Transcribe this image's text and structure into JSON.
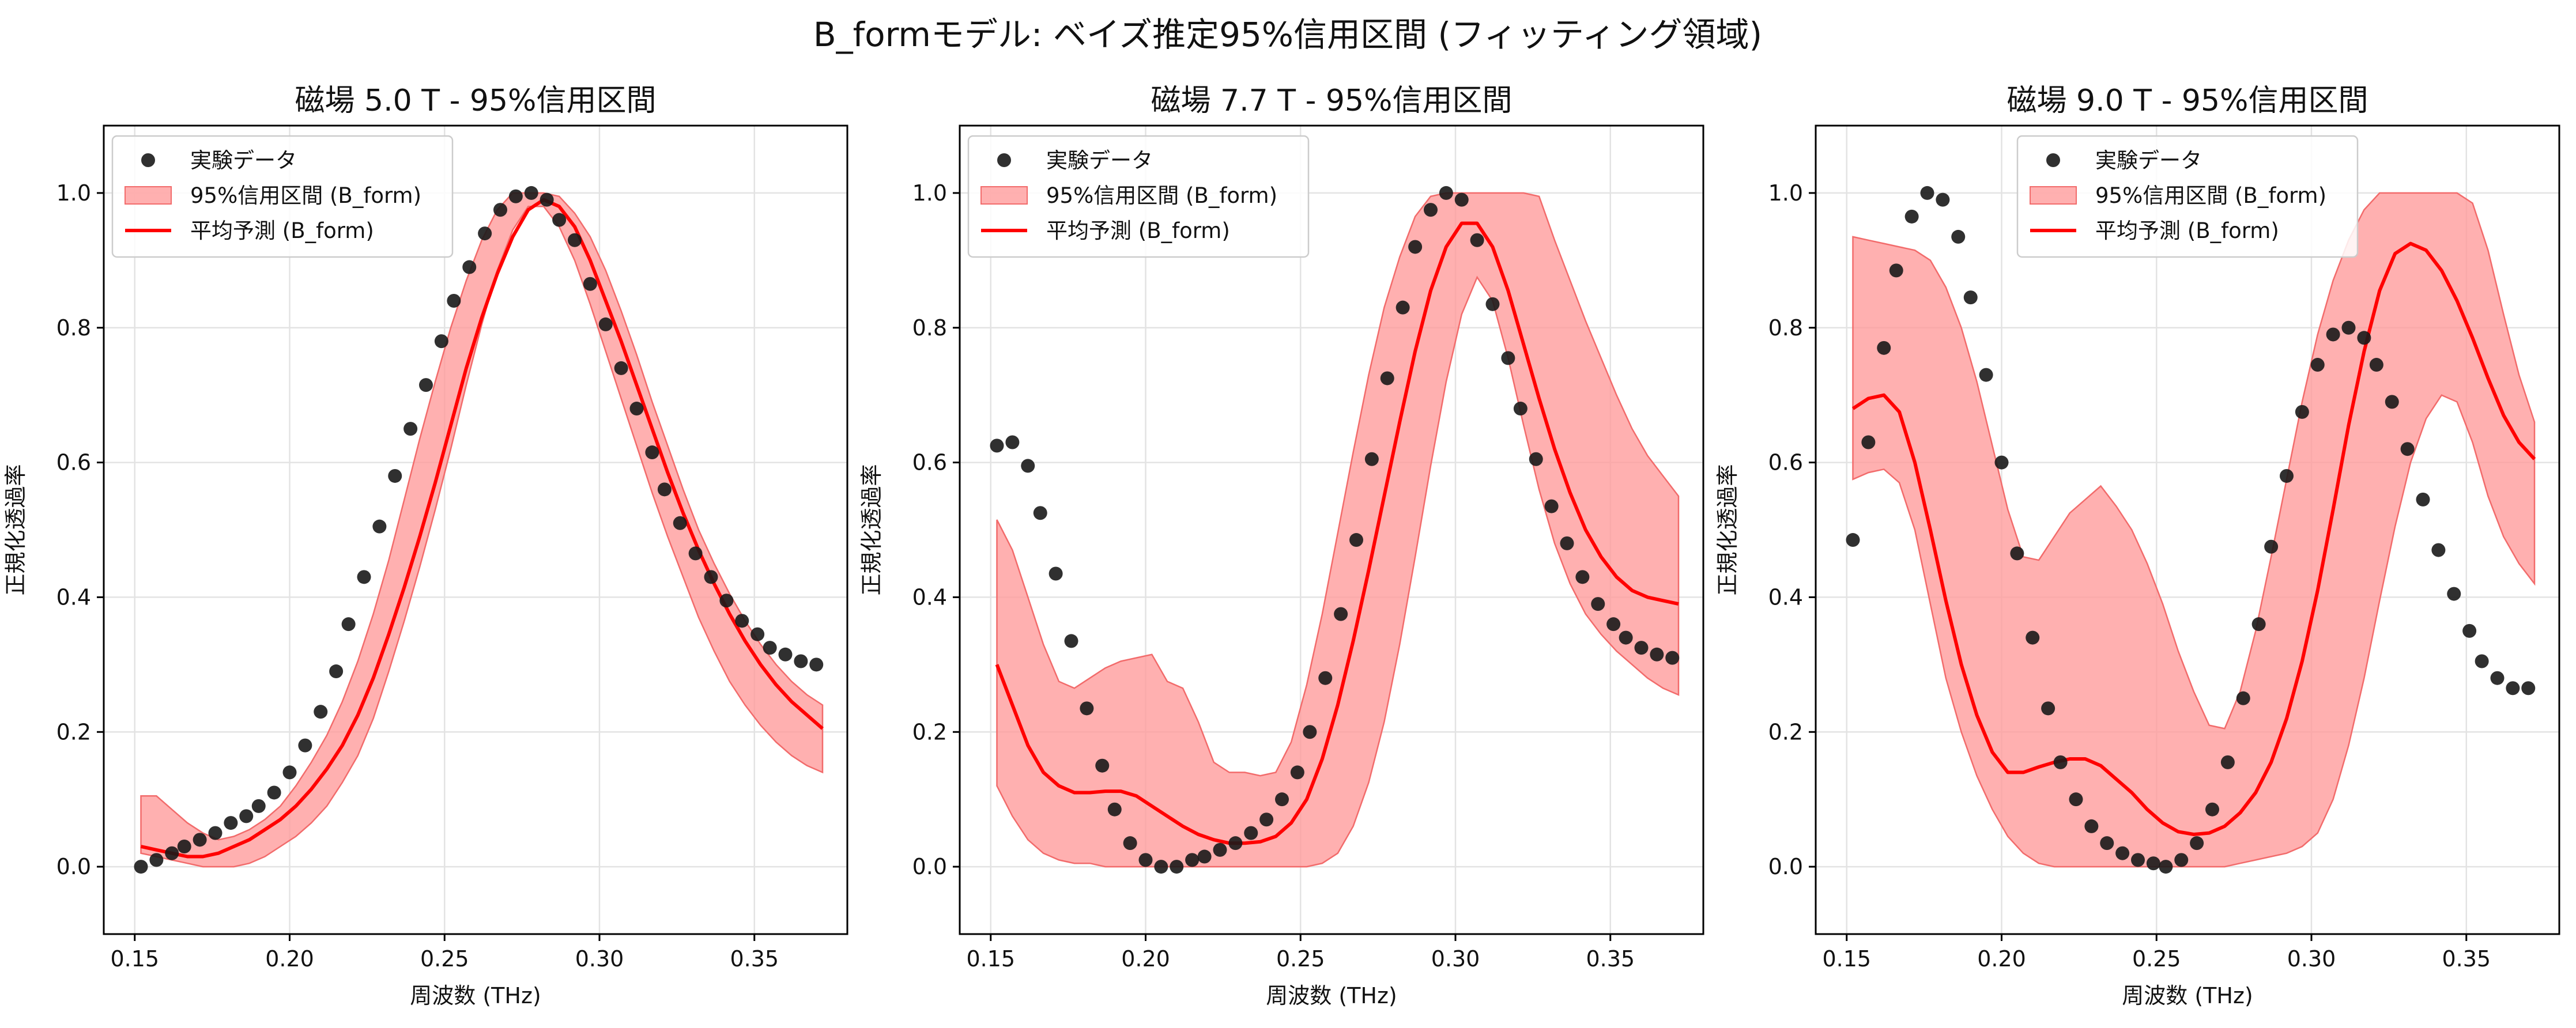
{
  "suptitle": "B_formモデル: ベイズ推定95%信用区間 (フィッティング領域)",
  "colors": {
    "data_point": "#1a1a1a",
    "band_fill": "#ff9a9a",
    "band_edge": "#f26b6b",
    "mean_line": "#ff0000",
    "grid": "#e3e3e3",
    "axis": "#000000"
  },
  "legend_labels": {
    "data": "実験データ",
    "band": "95%信用区間 (B_form)",
    "mean": "平均予測 (B_form)"
  },
  "chart_data": [
    {
      "type": "scatter",
      "title": "磁場 5.0 T - 95%信用区間",
      "xlabel": "周波数 (THz)",
      "ylabel": "正規化透過率",
      "xlim": [
        0.14,
        0.38
      ],
      "ylim": [
        -0.1,
        1.1
      ],
      "xticks": [
        0.15,
        0.2,
        0.25,
        0.3,
        0.35
      ],
      "xtick_labels": [
        "0.15",
        "0.20",
        "0.25",
        "0.30",
        "0.35"
      ],
      "yticks": [
        0.0,
        0.2,
        0.4,
        0.6,
        0.8,
        1.0
      ],
      "ytick_labels": [
        "0.0",
        "0.2",
        "0.4",
        "0.6",
        "0.8",
        "1.0"
      ],
      "grid": true,
      "legend_position": "upper-left",
      "experimental": {
        "name": "実験データ",
        "x": [
          0.152,
          0.157,
          0.162,
          0.166,
          0.171,
          0.176,
          0.181,
          0.186,
          0.19,
          0.195,
          0.2,
          0.205,
          0.21,
          0.215,
          0.219,
          0.224,
          0.229,
          0.234,
          0.239,
          0.244,
          0.249,
          0.253,
          0.258,
          0.263,
          0.268,
          0.273,
          0.278,
          0.283,
          0.287,
          0.292,
          0.297,
          0.302,
          0.307,
          0.312,
          0.317,
          0.321,
          0.326,
          0.331,
          0.336,
          0.341,
          0.346,
          0.351,
          0.355,
          0.36,
          0.365,
          0.37
        ],
        "y": [
          0.0,
          0.01,
          0.02,
          0.03,
          0.04,
          0.05,
          0.065,
          0.075,
          0.09,
          0.11,
          0.14,
          0.18,
          0.23,
          0.29,
          0.36,
          0.43,
          0.505,
          0.58,
          0.65,
          0.715,
          0.78,
          0.84,
          0.89,
          0.94,
          0.975,
          0.995,
          1.0,
          0.99,
          0.96,
          0.93,
          0.865,
          0.805,
          0.74,
          0.68,
          0.615,
          0.56,
          0.51,
          0.465,
          0.43,
          0.395,
          0.365,
          0.345,
          0.325,
          0.315,
          0.305,
          0.3
        ]
      },
      "band": {
        "name": "95%信用区間 (B_form)",
        "x": [
          0.152,
          0.157,
          0.162,
          0.167,
          0.172,
          0.177,
          0.182,
          0.187,
          0.192,
          0.197,
          0.202,
          0.207,
          0.212,
          0.217,
          0.222,
          0.227,
          0.232,
          0.237,
          0.242,
          0.247,
          0.252,
          0.257,
          0.262,
          0.267,
          0.272,
          0.277,
          0.282,
          0.287,
          0.292,
          0.297,
          0.302,
          0.307,
          0.312,
          0.317,
          0.322,
          0.327,
          0.332,
          0.337,
          0.342,
          0.347,
          0.352,
          0.357,
          0.362,
          0.367,
          0.372
        ],
        "lower": [
          0.02,
          0.015,
          0.01,
          0.005,
          0.0,
          0.0,
          0.0,
          0.005,
          0.015,
          0.03,
          0.045,
          0.065,
          0.09,
          0.125,
          0.165,
          0.22,
          0.29,
          0.365,
          0.445,
          0.53,
          0.62,
          0.715,
          0.805,
          0.885,
          0.945,
          0.98,
          0.98,
          0.95,
          0.9,
          0.835,
          0.765,
          0.695,
          0.625,
          0.555,
          0.49,
          0.43,
          0.37,
          0.32,
          0.275,
          0.24,
          0.21,
          0.185,
          0.165,
          0.15,
          0.14
        ],
        "upper": [
          0.105,
          0.105,
          0.085,
          0.065,
          0.05,
          0.04,
          0.045,
          0.055,
          0.07,
          0.09,
          0.12,
          0.155,
          0.195,
          0.245,
          0.305,
          0.375,
          0.455,
          0.545,
          0.635,
          0.72,
          0.8,
          0.87,
          0.93,
          0.975,
          1.0,
          1.0,
          1.0,
          0.995,
          0.97,
          0.935,
          0.885,
          0.825,
          0.76,
          0.69,
          0.625,
          0.56,
          0.5,
          0.45,
          0.405,
          0.365,
          0.33,
          0.3,
          0.275,
          0.255,
          0.24
        ]
      },
      "mean": {
        "name": "平均予測 (B_form)",
        "x": [
          0.152,
          0.157,
          0.162,
          0.167,
          0.172,
          0.177,
          0.182,
          0.187,
          0.192,
          0.197,
          0.202,
          0.207,
          0.212,
          0.217,
          0.222,
          0.227,
          0.232,
          0.237,
          0.242,
          0.247,
          0.252,
          0.257,
          0.262,
          0.267,
          0.272,
          0.277,
          0.282,
          0.287,
          0.292,
          0.297,
          0.302,
          0.307,
          0.312,
          0.317,
          0.322,
          0.327,
          0.332,
          0.337,
          0.342,
          0.347,
          0.352,
          0.357,
          0.362,
          0.367,
          0.372
        ],
        "y": [
          0.03,
          0.025,
          0.02,
          0.015,
          0.015,
          0.02,
          0.03,
          0.04,
          0.055,
          0.07,
          0.09,
          0.115,
          0.145,
          0.18,
          0.225,
          0.28,
          0.345,
          0.415,
          0.49,
          0.57,
          0.655,
          0.74,
          0.815,
          0.88,
          0.935,
          0.975,
          0.99,
          0.98,
          0.95,
          0.9,
          0.84,
          0.78,
          0.715,
          0.65,
          0.585,
          0.525,
          0.47,
          0.42,
          0.375,
          0.335,
          0.3,
          0.27,
          0.245,
          0.225,
          0.205
        ]
      }
    },
    {
      "type": "scatter",
      "title": "磁場 7.7 T - 95%信用区間",
      "xlabel": "周波数 (THz)",
      "ylabel": "正規化透過率",
      "xlim": [
        0.14,
        0.38
      ],
      "ylim": [
        -0.1,
        1.1
      ],
      "xticks": [
        0.15,
        0.2,
        0.25,
        0.3,
        0.35
      ],
      "xtick_labels": [
        "0.15",
        "0.20",
        "0.25",
        "0.30",
        "0.35"
      ],
      "yticks": [
        0.0,
        0.2,
        0.4,
        0.6,
        0.8,
        1.0
      ],
      "ytick_labels": [
        "0.0",
        "0.2",
        "0.4",
        "0.6",
        "0.8",
        "1.0"
      ],
      "grid": true,
      "legend_position": "upper-left",
      "experimental": {
        "name": "実験データ",
        "x": [
          0.152,
          0.157,
          0.162,
          0.166,
          0.171,
          0.176,
          0.181,
          0.186,
          0.19,
          0.195,
          0.2,
          0.205,
          0.21,
          0.215,
          0.219,
          0.224,
          0.229,
          0.234,
          0.239,
          0.244,
          0.249,
          0.253,
          0.258,
          0.263,
          0.268,
          0.273,
          0.278,
          0.283,
          0.287,
          0.292,
          0.297,
          0.302,
          0.307,
          0.312,
          0.317,
          0.321,
          0.326,
          0.331,
          0.336,
          0.341,
          0.346,
          0.351,
          0.355,
          0.36,
          0.365,
          0.37
        ],
        "y": [
          0.625,
          0.63,
          0.595,
          0.525,
          0.435,
          0.335,
          0.235,
          0.15,
          0.085,
          0.035,
          0.01,
          0.0,
          0.0,
          0.01,
          0.015,
          0.025,
          0.035,
          0.05,
          0.07,
          0.1,
          0.14,
          0.2,
          0.28,
          0.375,
          0.485,
          0.605,
          0.725,
          0.83,
          0.92,
          0.975,
          1.0,
          0.99,
          0.93,
          0.835,
          0.755,
          0.68,
          0.605,
          0.535,
          0.48,
          0.43,
          0.39,
          0.36,
          0.34,
          0.325,
          0.315,
          0.31
        ]
      },
      "band": {
        "name": "95%信用区間 (B_form)",
        "x": [
          0.152,
          0.157,
          0.162,
          0.167,
          0.172,
          0.177,
          0.182,
          0.187,
          0.192,
          0.197,
          0.202,
          0.207,
          0.212,
          0.217,
          0.222,
          0.227,
          0.232,
          0.237,
          0.242,
          0.247,
          0.252,
          0.257,
          0.262,
          0.267,
          0.272,
          0.277,
          0.282,
          0.287,
          0.292,
          0.297,
          0.302,
          0.307,
          0.312,
          0.317,
          0.322,
          0.327,
          0.332,
          0.337,
          0.342,
          0.347,
          0.352,
          0.357,
          0.362,
          0.367,
          0.372
        ],
        "lower": [
          0.12,
          0.075,
          0.04,
          0.02,
          0.01,
          0.005,
          0.005,
          0.0,
          0.0,
          0.0,
          0.0,
          0.0,
          0.0,
          0.0,
          0.0,
          0.0,
          0.0,
          0.0,
          0.0,
          0.0,
          0.0,
          0.005,
          0.02,
          0.06,
          0.125,
          0.215,
          0.33,
          0.46,
          0.595,
          0.72,
          0.82,
          0.875,
          0.84,
          0.755,
          0.655,
          0.56,
          0.48,
          0.42,
          0.375,
          0.345,
          0.32,
          0.3,
          0.28,
          0.265,
          0.255
        ],
        "upper": [
          0.515,
          0.47,
          0.4,
          0.33,
          0.275,
          0.265,
          0.28,
          0.295,
          0.305,
          0.31,
          0.315,
          0.275,
          0.265,
          0.215,
          0.155,
          0.14,
          0.14,
          0.135,
          0.14,
          0.185,
          0.27,
          0.375,
          0.495,
          0.615,
          0.73,
          0.83,
          0.905,
          0.965,
          0.995,
          1.0,
          1.0,
          1.0,
          1.0,
          1.0,
          1.0,
          0.995,
          0.93,
          0.87,
          0.81,
          0.755,
          0.7,
          0.65,
          0.61,
          0.58,
          0.55
        ]
      },
      "mean": {
        "name": "平均予測 (B_form)",
        "x": [
          0.152,
          0.157,
          0.162,
          0.167,
          0.172,
          0.177,
          0.182,
          0.187,
          0.192,
          0.197,
          0.202,
          0.207,
          0.212,
          0.217,
          0.222,
          0.227,
          0.232,
          0.237,
          0.242,
          0.247,
          0.252,
          0.257,
          0.262,
          0.267,
          0.272,
          0.277,
          0.282,
          0.287,
          0.292,
          0.297,
          0.302,
          0.307,
          0.312,
          0.317,
          0.322,
          0.327,
          0.332,
          0.337,
          0.342,
          0.347,
          0.352,
          0.357,
          0.362,
          0.367,
          0.372
        ],
        "y": [
          0.3,
          0.24,
          0.18,
          0.14,
          0.12,
          0.11,
          0.11,
          0.112,
          0.112,
          0.105,
          0.09,
          0.075,
          0.06,
          0.048,
          0.04,
          0.035,
          0.035,
          0.037,
          0.045,
          0.065,
          0.1,
          0.16,
          0.24,
          0.335,
          0.44,
          0.55,
          0.66,
          0.765,
          0.855,
          0.92,
          0.955,
          0.955,
          0.92,
          0.855,
          0.775,
          0.695,
          0.62,
          0.555,
          0.5,
          0.46,
          0.43,
          0.41,
          0.4,
          0.395,
          0.39
        ]
      }
    },
    {
      "type": "scatter",
      "title": "磁場 9.0 T - 95%信用区間",
      "xlabel": "周波数 (THz)",
      "ylabel": "正規化透過率",
      "xlim": [
        0.14,
        0.38
      ],
      "ylim": [
        -0.1,
        1.1
      ],
      "xticks": [
        0.15,
        0.2,
        0.25,
        0.3,
        0.35
      ],
      "xtick_labels": [
        "0.15",
        "0.20",
        "0.25",
        "0.30",
        "0.35"
      ],
      "yticks": [
        0.0,
        0.2,
        0.4,
        0.6,
        0.8,
        1.0
      ],
      "ytick_labels": [
        "0.0",
        "0.2",
        "0.4",
        "0.6",
        "0.8",
        "1.0"
      ],
      "grid": true,
      "legend_position": "upper-center",
      "experimental": {
        "name": "実験データ",
        "x": [
          0.152,
          0.157,
          0.162,
          0.166,
          0.171,
          0.176,
          0.181,
          0.186,
          0.19,
          0.195,
          0.2,
          0.205,
          0.21,
          0.215,
          0.219,
          0.224,
          0.229,
          0.234,
          0.239,
          0.244,
          0.249,
          0.253,
          0.258,
          0.263,
          0.268,
          0.273,
          0.278,
          0.283,
          0.287,
          0.292,
          0.297,
          0.302,
          0.307,
          0.312,
          0.317,
          0.321,
          0.326,
          0.331,
          0.336,
          0.341,
          0.346,
          0.351,
          0.355,
          0.36,
          0.365,
          0.37
        ],
        "y": [
          0.485,
          0.63,
          0.77,
          0.885,
          0.965,
          1.0,
          0.99,
          0.935,
          0.845,
          0.73,
          0.6,
          0.465,
          0.34,
          0.235,
          0.155,
          0.1,
          0.06,
          0.035,
          0.02,
          0.01,
          0.005,
          0.0,
          0.01,
          0.035,
          0.085,
          0.155,
          0.25,
          0.36,
          0.475,
          0.58,
          0.675,
          0.745,
          0.79,
          0.8,
          0.785,
          0.745,
          0.69,
          0.62,
          0.545,
          0.47,
          0.405,
          0.35,
          0.305,
          0.28,
          0.265,
          0.265
        ]
      },
      "band": {
        "name": "95%信用区間 (B_form)",
        "x": [
          0.152,
          0.157,
          0.162,
          0.167,
          0.172,
          0.177,
          0.182,
          0.187,
          0.192,
          0.197,
          0.202,
          0.207,
          0.212,
          0.217,
          0.222,
          0.227,
          0.232,
          0.237,
          0.242,
          0.247,
          0.252,
          0.257,
          0.262,
          0.267,
          0.272,
          0.277,
          0.282,
          0.287,
          0.292,
          0.297,
          0.302,
          0.307,
          0.312,
          0.317,
          0.322,
          0.327,
          0.332,
          0.337,
          0.342,
          0.347,
          0.352,
          0.357,
          0.362,
          0.367,
          0.372
        ],
        "lower": [
          0.575,
          0.585,
          0.59,
          0.57,
          0.5,
          0.39,
          0.28,
          0.2,
          0.135,
          0.085,
          0.045,
          0.02,
          0.005,
          0.0,
          0.0,
          0.0,
          0.0,
          0.0,
          0.0,
          0.0,
          0.0,
          0.0,
          0.0,
          0.0,
          0.0,
          0.005,
          0.01,
          0.015,
          0.02,
          0.03,
          0.05,
          0.1,
          0.18,
          0.28,
          0.395,
          0.505,
          0.6,
          0.665,
          0.7,
          0.69,
          0.63,
          0.55,
          0.49,
          0.45,
          0.42
        ],
        "upper": [
          0.935,
          0.93,
          0.925,
          0.92,
          0.915,
          0.9,
          0.86,
          0.8,
          0.72,
          0.625,
          0.53,
          0.46,
          0.455,
          0.49,
          0.525,
          0.545,
          0.565,
          0.535,
          0.5,
          0.45,
          0.39,
          0.32,
          0.26,
          0.21,
          0.205,
          0.26,
          0.35,
          0.46,
          0.575,
          0.69,
          0.79,
          0.87,
          0.93,
          0.975,
          1.0,
          1.0,
          1.0,
          1.0,
          1.0,
          1.0,
          0.985,
          0.915,
          0.82,
          0.73,
          0.66
        ]
      },
      "mean": {
        "name": "平均予測 (B_form)",
        "x": [
          0.152,
          0.157,
          0.162,
          0.167,
          0.172,
          0.177,
          0.182,
          0.187,
          0.192,
          0.197,
          0.202,
          0.207,
          0.212,
          0.217,
          0.222,
          0.227,
          0.232,
          0.237,
          0.242,
          0.247,
          0.252,
          0.257,
          0.262,
          0.267,
          0.272,
          0.277,
          0.282,
          0.287,
          0.292,
          0.297,
          0.302,
          0.307,
          0.312,
          0.317,
          0.322,
          0.327,
          0.332,
          0.337,
          0.342,
          0.347,
          0.352,
          0.357,
          0.362,
          0.367,
          0.372
        ],
        "y": [
          0.68,
          0.695,
          0.7,
          0.675,
          0.6,
          0.5,
          0.395,
          0.3,
          0.225,
          0.17,
          0.14,
          0.14,
          0.148,
          0.155,
          0.16,
          0.16,
          0.15,
          0.13,
          0.11,
          0.085,
          0.065,
          0.052,
          0.048,
          0.05,
          0.06,
          0.08,
          0.11,
          0.155,
          0.22,
          0.305,
          0.41,
          0.53,
          0.655,
          0.765,
          0.855,
          0.91,
          0.925,
          0.915,
          0.885,
          0.84,
          0.785,
          0.725,
          0.67,
          0.63,
          0.605
        ]
      }
    }
  ]
}
